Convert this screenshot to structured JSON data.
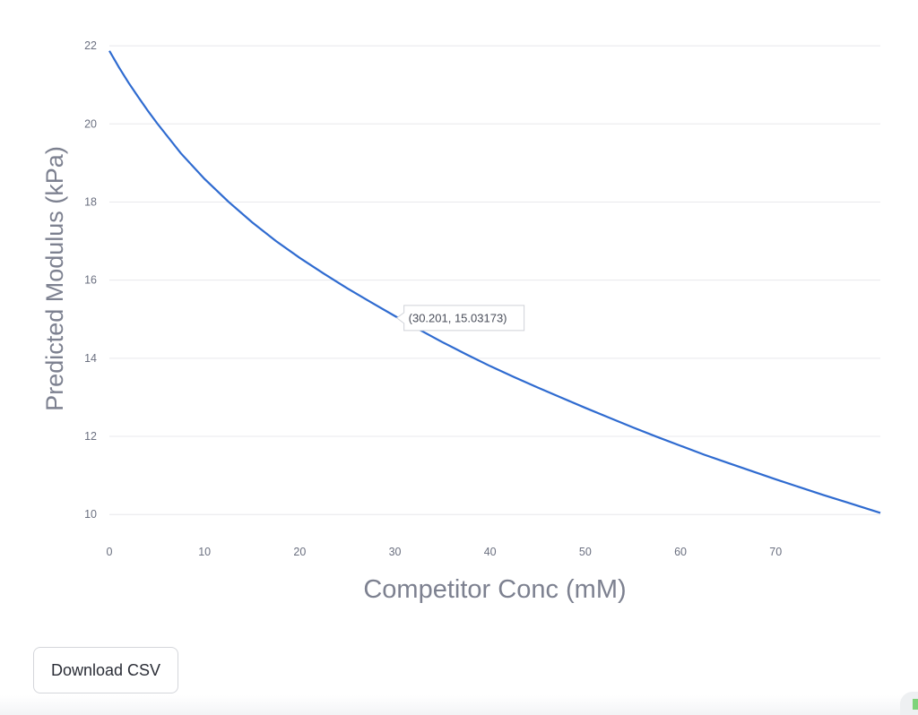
{
  "chart_data": {
    "type": "line",
    "xlabel": "Competitor Conc (mM)",
    "ylabel": "Predicted Modulus (kPa)",
    "xlim": [
      0,
      81
    ],
    "ylim": [
      9.5,
      22.3
    ],
    "x_ticks": [
      0,
      10,
      20,
      30,
      40,
      50,
      60,
      70
    ],
    "y_ticks": [
      10,
      12,
      14,
      16,
      18,
      20,
      22
    ],
    "grid": "horizontal",
    "series": [
      {
        "color": "#2f6bd0",
        "x": [
          0,
          1,
          2,
          3,
          4,
          5,
          7.5,
          10,
          12.5,
          15,
          17.5,
          20,
          22.5,
          25,
          27.5,
          30,
          32.5,
          35,
          37.5,
          40,
          42.5,
          45,
          47.5,
          50,
          52.5,
          55,
          57.5,
          60,
          62.5,
          65,
          67.5,
          70,
          72.5,
          75,
          77.5,
          81
        ],
        "y": [
          21.87,
          21.45,
          21.06,
          20.7,
          20.35,
          20.02,
          19.25,
          18.59,
          18.01,
          17.48,
          17.0,
          16.57,
          16.17,
          15.79,
          15.43,
          15.08,
          14.74,
          14.41,
          14.1,
          13.8,
          13.52,
          13.25,
          12.99,
          12.73,
          12.48,
          12.23,
          11.99,
          11.76,
          11.53,
          11.32,
          11.11,
          10.9,
          10.7,
          10.5,
          10.31,
          10.04
        ]
      }
    ],
    "tooltip": {
      "text": "(30.201, 15.03173)",
      "x": 30.201,
      "y": 15.03173
    }
  },
  "download_button": {
    "label": "Download CSV"
  },
  "colors": {
    "series": "#2f6bd0",
    "grid": "#e8e8ec",
    "axis_text": "#6b7080",
    "axis_title": "#7d8190"
  }
}
